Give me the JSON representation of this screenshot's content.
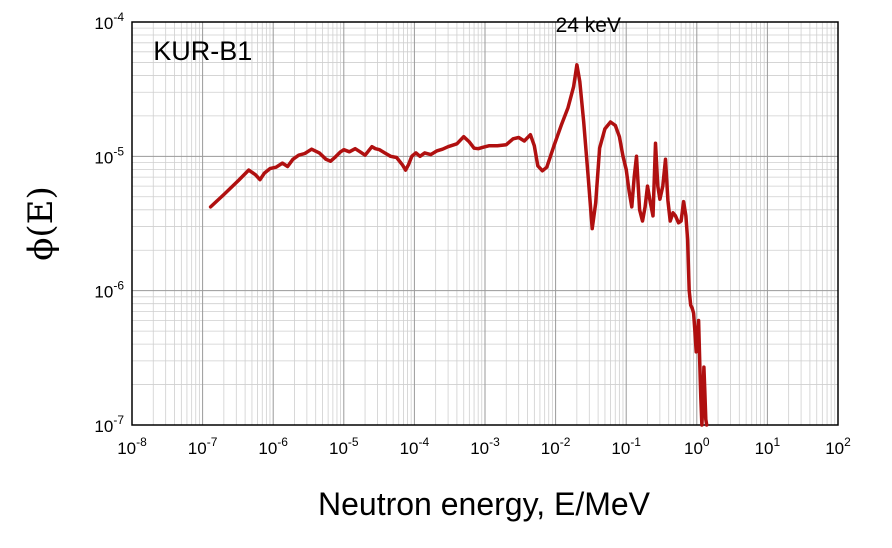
{
  "chart_data": {
    "type": "line",
    "title": "",
    "xlabel": "Neutron energy, E/MeV",
    "ylabel": "ϕ(E)",
    "xscale": "log",
    "yscale": "log",
    "xlim": [
      1e-08,
      100
    ],
    "ylim": [
      1e-07,
      0.0001
    ],
    "grid": true,
    "x_tick_labels": [
      {
        "base": "10",
        "exp": "-8"
      },
      {
        "base": "10",
        "exp": "-7"
      },
      {
        "base": "10",
        "exp": "-6"
      },
      {
        "base": "10",
        "exp": "-5"
      },
      {
        "base": "10",
        "exp": "-4"
      },
      {
        "base": "10",
        "exp": "-3"
      },
      {
        "base": "10",
        "exp": "-2"
      },
      {
        "base": "10",
        "exp": "-1"
      },
      {
        "base": "10",
        "exp": "0"
      },
      {
        "base": "10",
        "exp": "1"
      },
      {
        "base": "10",
        "exp": "2"
      }
    ],
    "y_tick_labels": [
      {
        "base": "10",
        "exp": "-7"
      },
      {
        "base": "10",
        "exp": "-6"
      },
      {
        "base": "10",
        "exp": "-5"
      },
      {
        "base": "10",
        "exp": "-4"
      }
    ],
    "series_color": "#b01010",
    "series": [
      {
        "x": [
          1.3e-07,
          2e-07,
          3.2e-07,
          4.5e-07,
          5.6e-07,
          6.5e-07,
          7.5e-07,
          9e-07,
          1.1e-06,
          1.35e-06,
          1.6e-06,
          1.9e-06,
          2.3e-06,
          2.8e-06,
          3.5e-06,
          4.5e-06,
          5.6e-06,
          6.5e-06,
          7.6e-06,
          9e-06,
          1e-05,
          1.2e-05,
          1.45e-05,
          1.7e-05,
          2e-05,
          2.5e-05,
          2.8e-05,
          3.2e-05,
          3.8e-05,
          4.6e-05,
          5.6e-05,
          6.8e-05,
          7.5e-05,
          8.2e-05,
          9.2e-05,
          0.000105,
          0.00012,
          0.00014,
          0.00017,
          0.00021,
          0.00025,
          0.0003,
          0.0004,
          0.0005,
          0.0006,
          0.0007,
          0.0008,
          0.00095,
          0.00115,
          0.0015,
          0.002,
          0.0025,
          0.003,
          0.0036,
          0.0044,
          0.005,
          0.0056,
          0.0065,
          0.0075,
          0.0095,
          0.012,
          0.015,
          0.018,
          0.02,
          0.022,
          0.025,
          0.029,
          0.033,
          0.037,
          0.042,
          0.05,
          0.06,
          0.07,
          0.08,
          0.09,
          0.1,
          0.11,
          0.12,
          0.13,
          0.14,
          0.155,
          0.17,
          0.185,
          0.2,
          0.22,
          0.24,
          0.26,
          0.28,
          0.3,
          0.33,
          0.36,
          0.39,
          0.42,
          0.46,
          0.5,
          0.55,
          0.6,
          0.65,
          0.7,
          0.74,
          0.78,
          0.82,
          0.86,
          0.9,
          0.94,
          0.98,
          1.02,
          1.06,
          1.1,
          1.14,
          1.18,
          1.22,
          1.26,
          1.3,
          1.34,
          1.38
        ],
        "y": [
          4.2e-06,
          5.2e-06,
          6.6e-06,
          7.9e-06,
          7.3e-06,
          6.7e-06,
          7.5e-06,
          8.1e-06,
          8.3e-06,
          8.9e-06,
          8.4e-06,
          9.5e-06,
          1.02e-05,
          1.05e-05,
          1.13e-05,
          1.06e-05,
          9.5e-06,
          9.2e-06,
          9.9e-06,
          1.08e-05,
          1.12e-05,
          1.08e-05,
          1.14e-05,
          1.08e-05,
          1.02e-05,
          1.18e-05,
          1.14e-05,
          1.12e-05,
          1.06e-05,
          1e-05,
          9.8e-06,
          8.6e-06,
          7.9e-06,
          8.6e-06,
          1e-05,
          1.06e-05,
          1e-05,
          1.06e-05,
          1.03e-05,
          1.1e-05,
          1.13e-05,
          1.18e-05,
          1.24e-05,
          1.4e-05,
          1.28e-05,
          1.15e-05,
          1.14e-05,
          1.17e-05,
          1.2e-05,
          1.2e-05,
          1.22e-05,
          1.35e-05,
          1.38e-05,
          1.3e-05,
          1.45e-05,
          1.2e-05,
          8.5e-06,
          7.8e-06,
          8.3e-06,
          1.2e-05,
          1.7e-05,
          2.3e-05,
          3.3e-05,
          4.8e-05,
          3.6e-05,
          1.8e-05,
          7e-06,
          2.9e-06,
          4.5e-06,
          1.15e-05,
          1.6e-05,
          1.8e-05,
          1.7e-05,
          1.4e-05,
          1e-05,
          8e-06,
          5.5e-06,
          4.2e-06,
          7e-06,
          1e-05,
          4e-06,
          3.3e-06,
          4.2e-06,
          6e-06,
          4.5e-06,
          3.6e-06,
          1.25e-05,
          6e-06,
          4.8e-06,
          6e-06,
          9.5e-06,
          4.7e-06,
          3.3e-06,
          3.8e-06,
          3.6e-06,
          3.2e-06,
          3.3e-06,
          4.6e-06,
          3.6e-06,
          2.4e-06,
          1e-06,
          7.8e-07,
          7.4e-07,
          6.8e-07,
          5e-07,
          3.5e-07,
          4.8e-07,
          6e-07,
          3e-07,
          1.6e-07,
          1e-07,
          1.5e-07,
          2.7e-07,
          1.8e-07,
          1.1e-07,
          1e-07
        ]
      }
    ],
    "annotations": [
      {
        "text": "KUR-B1",
        "x": 2e-08,
        "y": 5.2e-05,
        "size": "large"
      },
      {
        "text": "24 keV",
        "x": 0.01,
        "y": 8.4e-05,
        "size": "medium"
      }
    ]
  }
}
